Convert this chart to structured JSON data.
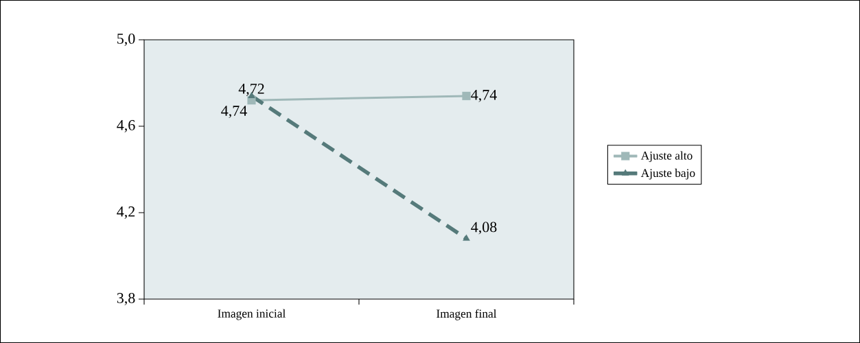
{
  "chart_data": {
    "type": "line",
    "categories": [
      "Imagen inicial",
      "Imagen final"
    ],
    "series": [
      {
        "name": "Ajuste alto",
        "color": "#9fb8b8",
        "values": [
          4.72,
          4.74
        ],
        "marker": "square",
        "line_style": "solid",
        "value_labels": [
          "4,72",
          "4,74"
        ]
      },
      {
        "name": "Ajuste bajo",
        "color": "#557a7a",
        "values": [
          4.74,
          4.08
        ],
        "marker": "triangle",
        "line_style": "dashed",
        "value_labels": [
          "4,74",
          "4,08"
        ]
      }
    ],
    "ylim": [
      3.8,
      5.0
    ],
    "yticks": [
      {
        "value": 3.8,
        "label": "3,8"
      },
      {
        "value": 4.2,
        "label": "4,2"
      },
      {
        "value": 4.6,
        "label": "4,6"
      },
      {
        "value": 5.0,
        "label": "5,0"
      }
    ],
    "grid": false,
    "legend": "right"
  }
}
